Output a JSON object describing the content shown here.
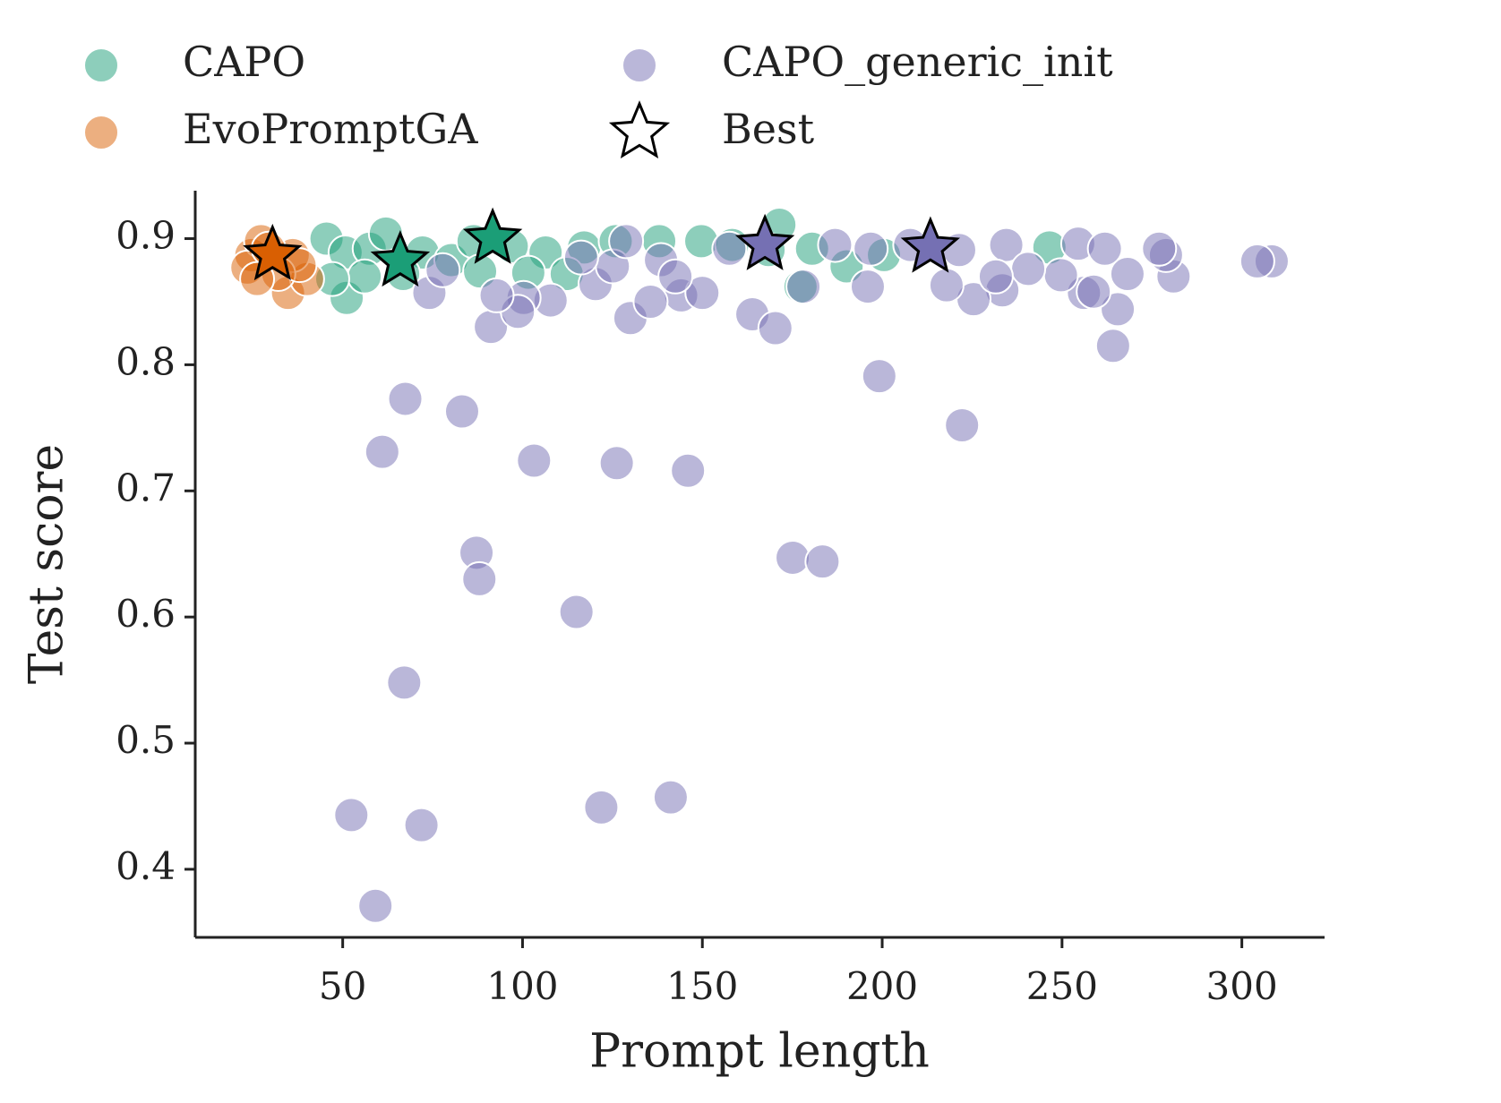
{
  "chart_data": {
    "type": "scatter",
    "xlabel": "Prompt length",
    "ylabel": "Test score",
    "xlim": [
      9,
      323
    ],
    "ylim": [
      0.346,
      0.938
    ],
    "xticks": [
      50,
      100,
      150,
      200,
      250,
      300
    ],
    "yticks": [
      0.4,
      0.5,
      0.6,
      0.7,
      0.8,
      0.9
    ],
    "series": [
      {
        "name": "CAPO",
        "color": "#1b9e77",
        "x": [
          45.5,
          51.1,
          50.8,
          57.5,
          62,
          56.1,
          72.2,
          80.2,
          86.4,
          97,
          106.4,
          117.1,
          125.9,
          138,
          149.7,
          158.3,
          171.4,
          177.3,
          190.1,
          246.5,
          66.8,
          88.2,
          112.3,
          47.1,
          101.6,
          168.4,
          180.5,
          200.5
        ],
        "values": [
          0.9,
          0.853,
          0.889,
          0.892,
          0.904,
          0.87,
          0.889,
          0.883,
          0.898,
          0.894,
          0.889,
          0.893,
          0.898,
          0.898,
          0.898,
          0.895,
          0.911,
          0.862,
          0.878,
          0.893,
          0.872,
          0.874,
          0.872,
          0.868,
          0.873,
          0.891,
          0.892,
          0.887
        ]
      },
      {
        "name": "EvoPromptGA",
        "color": "#d95f02",
        "x": [
          24.6,
          27.3,
          34.8,
          40.1,
          36.1,
          23.5,
          32.1,
          29.4,
          38,
          26.2
        ],
        "values": [
          0.887,
          0.898,
          0.857,
          0.868,
          0.887,
          0.877,
          0.872,
          0.892,
          0.879,
          0.868
        ]
      },
      {
        "name": "CAPO_generic_init",
        "color": "#7570b3",
        "x": [
          67.4,
          61,
          83.2,
          103.2,
          126.2,
          146,
          87.2,
          88,
          115,
          175.1,
          183.4,
          67.1,
          52.4,
          71.9,
          59.1,
          121.9,
          141.2,
          199.2,
          222.2,
          264.2,
          265.5,
          163.9,
          170.3,
          91.2,
          130,
          308.3,
          304.3,
          281,
          278.9,
          256.1,
          254.5,
          268.2,
          261.9,
          249.7,
          233.4,
          234.5,
          225.4,
          217.9,
          207.8,
          196,
          196.8,
          186.9,
          178.1,
          157.5,
          144.1,
          150,
          135.6,
          120.3,
          125.1,
          128.8,
          138.5,
          142.5,
          116.3,
          107.8,
          100.3,
          98.7,
          92.8,
          74.1,
          77.8,
          240.6,
          231.6,
          221.4,
          277,
          258.8
        ],
        "values": [
          0.773,
          0.731,
          0.763,
          0.724,
          0.722,
          0.716,
          0.651,
          0.63,
          0.604,
          0.647,
          0.644,
          0.548,
          0.443,
          0.435,
          0.371,
          0.449,
          0.457,
          0.791,
          0.752,
          0.815,
          0.844,
          0.84,
          0.829,
          0.83,
          0.837,
          0.882,
          0.882,
          0.87,
          0.887,
          0.857,
          0.896,
          0.872,
          0.892,
          0.871,
          0.859,
          0.895,
          0.852,
          0.863,
          0.895,
          0.862,
          0.892,
          0.895,
          0.862,
          0.892,
          0.855,
          0.857,
          0.85,
          0.864,
          0.878,
          0.898,
          0.883,
          0.87,
          0.885,
          0.851,
          0.853,
          0.842,
          0.855,
          0.857,
          0.875,
          0.876,
          0.87,
          0.891,
          0.892,
          0.858
        ]
      },
      {
        "name": "Best",
        "marker": "star",
        "colors": [
          "#d95f02",
          "#1b9e77",
          "#1b9e77",
          "#7570b3",
          "#7570b3"
        ],
        "x": [
          30.5,
          66,
          91.7,
          167.4,
          213.4
        ],
        "values": [
          0.887,
          0.882,
          0.9,
          0.895,
          0.893
        ]
      }
    ]
  }
}
